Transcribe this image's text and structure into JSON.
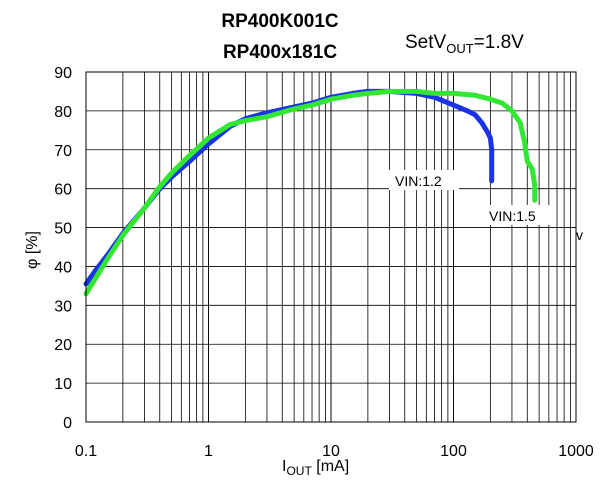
{
  "chart_data": {
    "type": "line",
    "title_lines": [
      "RP400K001C",
      "RP400x181C"
    ],
    "condition": {
      "prefix": "SetV",
      "sub": "OUT",
      "suffix": "=1.8V"
    },
    "xlabel": {
      "main": "I",
      "sub": "OUT",
      "suffix": " [mA]"
    },
    "ylabel": "φ [%]",
    "x_scale": "log",
    "xlim": [
      0.1,
      1000
    ],
    "ylim": [
      0,
      90
    ],
    "x_ticks": [
      0.1,
      1,
      10,
      100,
      1000
    ],
    "x_tick_labels": [
      "0.1",
      "1",
      "10",
      "100",
      "1000"
    ],
    "y_ticks": [
      0,
      10,
      20,
      30,
      40,
      50,
      60,
      70,
      80,
      90
    ],
    "y_tick_labels": [
      "0",
      "10",
      "20",
      "30",
      "40",
      "50",
      "60",
      "70",
      "80",
      "90"
    ],
    "grid": true,
    "stray_mark": "v",
    "series": [
      {
        "name": "VIN:1.2",
        "color": "#1a33e6",
        "x": [
          0.1,
          0.12,
          0.15,
          0.2,
          0.3,
          0.4,
          0.5,
          0.7,
          1,
          1.5,
          2,
          3,
          5,
          7,
          10,
          15,
          20,
          30,
          50,
          70,
          100,
          130,
          150,
          170,
          190,
          200,
          205,
          205,
          205
        ],
        "y": [
          35.5,
          39,
          43,
          48.5,
          55,
          60,
          63,
          67,
          71.5,
          76,
          78,
          79.5,
          81,
          82,
          83.5,
          84.5,
          85,
          85,
          84.5,
          83.5,
          81.5,
          80,
          79,
          77,
          74.5,
          73,
          70,
          66,
          62
        ]
      },
      {
        "name": "VIN:1.5",
        "color": "#33e633",
        "x": [
          0.1,
          0.12,
          0.15,
          0.2,
          0.3,
          0.4,
          0.5,
          0.7,
          1,
          1.5,
          2,
          3,
          5,
          7,
          10,
          15,
          20,
          30,
          50,
          70,
          100,
          150,
          200,
          250,
          300,
          350,
          380,
          400,
          420,
          440,
          450,
          460,
          460,
          460
        ],
        "y": [
          33,
          37,
          42,
          48,
          55,
          60.5,
          64,
          68.5,
          73,
          76.5,
          77.5,
          78.5,
          80.5,
          81.5,
          83,
          84,
          84.5,
          85,
          85,
          84.5,
          84.5,
          84,
          83,
          82,
          80,
          77,
          72,
          67,
          66,
          65,
          63,
          61,
          59,
          57
        ]
      }
    ],
    "series_labels": [
      {
        "text": "VIN:1.2",
        "x": 0.1
      },
      {
        "text": "VIN:1.5",
        "x": 0.2
      }
    ]
  }
}
